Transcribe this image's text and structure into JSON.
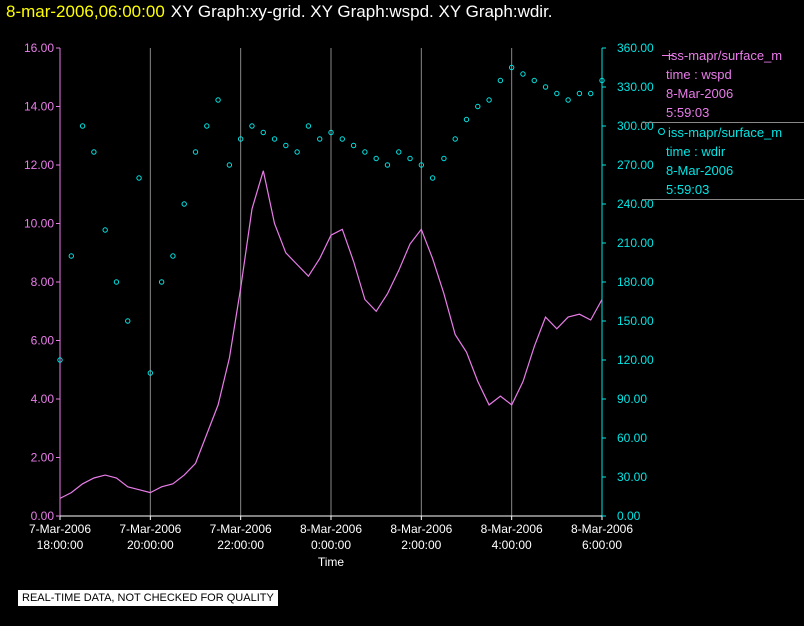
{
  "title": {
    "timestamp": "8-mar-2006,06:00:00",
    "graphs": "XY Graph:xy-grid.  XY Graph:wspd.  XY Graph:wdir."
  },
  "notice": "REAL-TIME DATA, NOT CHECKED FOR QUALITY",
  "legend": {
    "wspd": {
      "name": "iss-mapr/surface_m",
      "label": "time : wspd",
      "date": "8-Mar-2006",
      "time": "5:59:03"
    },
    "wdir": {
      "name": "iss-mapr/surface_m",
      "label": "time : wdir",
      "date": "8-Mar-2006",
      "time": "5:59:03"
    }
  },
  "colors": {
    "wspd": "#e97ce9",
    "wdir": "#00e5e5",
    "left_axis": "#e97ce9",
    "right_axis": "#00e5e5",
    "grid": "#888888",
    "title_timestamp": "#ffff00"
  },
  "chart_data": {
    "type": "line",
    "xlabel": "Time",
    "x_ticks": [
      {
        "date": "7-Mar-2006",
        "time": "18:00:00",
        "hour": 0
      },
      {
        "date": "7-Mar-2006",
        "time": "20:00:00",
        "hour": 2
      },
      {
        "date": "7-Mar-2006",
        "time": "22:00:00",
        "hour": 4
      },
      {
        "date": "8-Mar-2006",
        "time": "0:00:00",
        "hour": 6
      },
      {
        "date": "8-Mar-2006",
        "time": "2:00:00",
        "hour": 8
      },
      {
        "date": "8-Mar-2006",
        "time": "4:00:00",
        "hour": 10
      },
      {
        "date": "8-Mar-2006",
        "time": "6:00:00",
        "hour": 12
      }
    ],
    "xlim": [
      0,
      12
    ],
    "y_left": {
      "ylim": [
        0,
        16
      ],
      "ticks": [
        "0.00",
        "2.00",
        "4.00",
        "6.00",
        "8.00",
        "10.00",
        "12.00",
        "14.00",
        "16.00"
      ]
    },
    "y_right": {
      "ylim": [
        0,
        360
      ],
      "ticks": [
        "0.00",
        "30.00",
        "60.00",
        "90.00",
        "120.00",
        "150.00",
        "180.00",
        "210.00",
        "240.00",
        "270.00",
        "300.00",
        "330.00",
        "360.00"
      ]
    },
    "grid": "vertical",
    "series": [
      {
        "axis": "left",
        "style": "line",
        "x": [
          0.0,
          0.25,
          0.5,
          0.75,
          1.0,
          1.25,
          1.5,
          1.75,
          2.0,
          2.25,
          2.5,
          2.75,
          3.0,
          3.25,
          3.5,
          3.75,
          4.0,
          4.25,
          4.5,
          4.75,
          5.0,
          5.25,
          5.5,
          5.75,
          6.0,
          6.25,
          6.5,
          6.75,
          7.0,
          7.25,
          7.5,
          7.75,
          8.0,
          8.25,
          8.5,
          8.75,
          9.0,
          9.25,
          9.5,
          9.75,
          10.0,
          10.25,
          10.5,
          10.75,
          11.0,
          11.25,
          11.5,
          11.75,
          12.0
        ],
        "values": [
          0.6,
          0.8,
          1.1,
          1.3,
          1.4,
          1.3,
          1.0,
          0.9,
          0.8,
          1.0,
          1.1,
          1.4,
          1.8,
          2.8,
          3.8,
          5.4,
          7.8,
          10.5,
          11.8,
          10.0,
          9.0,
          8.6,
          8.2,
          8.8,
          9.6,
          9.8,
          8.7,
          7.4,
          7.0,
          7.6,
          8.4,
          9.3,
          9.8,
          8.8,
          7.6,
          6.2,
          5.6,
          4.6,
          3.8,
          4.1,
          3.8,
          4.6,
          5.8,
          6.8,
          6.4,
          6.8,
          6.9,
          6.7,
          7.4
        ]
      },
      {
        "axis": "right",
        "style": "scatter",
        "x": [
          0.0,
          0.25,
          0.5,
          0.75,
          1.0,
          1.25,
          1.5,
          1.75,
          2.0,
          2.25,
          2.5,
          2.75,
          3.0,
          3.25,
          3.5,
          3.75,
          4.0,
          4.25,
          4.5,
          4.75,
          5.0,
          5.25,
          5.5,
          5.75,
          6.0,
          6.25,
          6.5,
          6.75,
          7.0,
          7.25,
          7.5,
          7.75,
          8.0,
          8.25,
          8.5,
          8.75,
          9.0,
          9.25,
          9.5,
          9.75,
          10.0,
          10.25,
          10.5,
          10.75,
          11.0,
          11.25,
          11.5,
          11.75,
          12.0
        ],
        "values": [
          120,
          200,
          300,
          280,
          220,
          180,
          150,
          260,
          110,
          180,
          200,
          240,
          280,
          300,
          320,
          270,
          290,
          300,
          295,
          290,
          285,
          280,
          300,
          290,
          295,
          290,
          285,
          280,
          275,
          270,
          280,
          275,
          270,
          260,
          275,
          290,
          305,
          315,
          320,
          335,
          345,
          340,
          335,
          330,
          325,
          320,
          325,
          325,
          335
        ]
      }
    ]
  }
}
